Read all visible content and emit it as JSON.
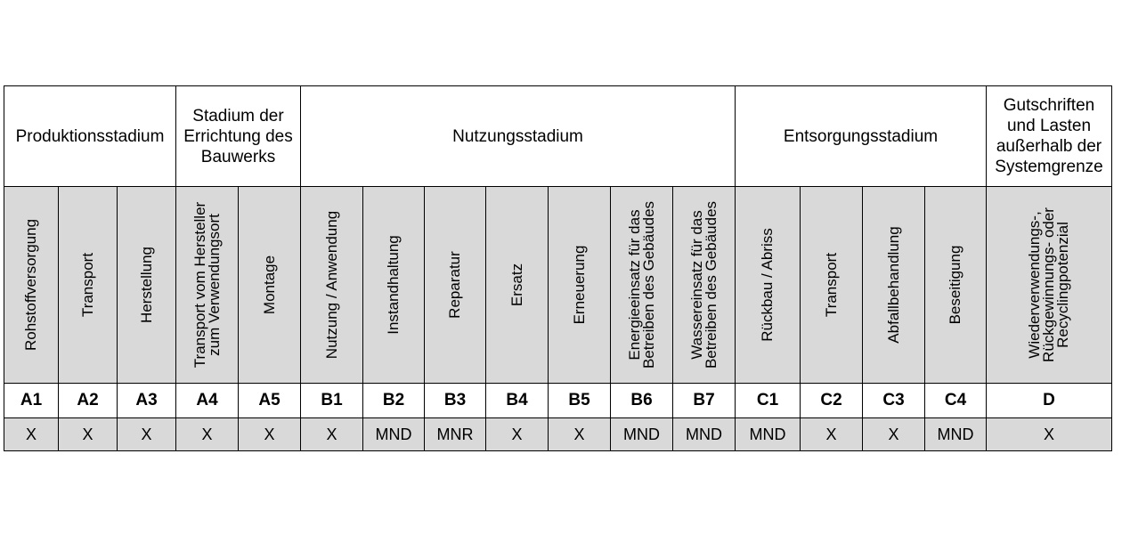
{
  "stages": [
    {
      "label": "Produktionsstadium",
      "span": 3
    },
    {
      "label": "Stadium der Errichtung des Bauwerks",
      "span": 2
    },
    {
      "label": "Nutzungsstadium",
      "span": 7
    },
    {
      "label": "Entsorgungsstadium",
      "span": 4
    },
    {
      "label": "Gutschriften und Lasten außerhalb der Systemgrenze",
      "span": 1
    }
  ],
  "modules": [
    {
      "name": "Rohstoffversorgung",
      "code": "A1",
      "value": "X"
    },
    {
      "name": "Transport",
      "code": "A2",
      "value": "X"
    },
    {
      "name": "Herstellung",
      "code": "A3",
      "value": "X"
    },
    {
      "name": "Transport vom Hersteller zum Verwendungsort",
      "code": "A4",
      "value": "X"
    },
    {
      "name": "Montage",
      "code": "A5",
      "value": "X"
    },
    {
      "name": "Nutzung / Anwendung",
      "code": "B1",
      "value": "X"
    },
    {
      "name": "Instandhaltung",
      "code": "B2",
      "value": "MND"
    },
    {
      "name": "Reparatur",
      "code": "B3",
      "value": "MNR"
    },
    {
      "name": "Ersatz",
      "code": "B4",
      "value": "X"
    },
    {
      "name": "Erneuerung",
      "code": "B5",
      "value": "X"
    },
    {
      "name": "Energieeinsatz für das Betreiben des Gebäudes",
      "code": "B6",
      "value": "MND"
    },
    {
      "name": "Wassereinsatz für das Betreiben des Gebäudes",
      "code": "B7",
      "value": "MND"
    },
    {
      "name": "Rückbau / Abriss",
      "code": "C1",
      "value": "MND"
    },
    {
      "name": "Transport",
      "code": "C2",
      "value": "X"
    },
    {
      "name": "Abfallbehandlung",
      "code": "C3",
      "value": "X"
    },
    {
      "name": "Beseitigung",
      "code": "C4",
      "value": "MND"
    },
    {
      "name": "Wiederverwendungs-, Rückgewinnungs- oder Recyclingpotenzial",
      "code": "D",
      "value": "X"
    }
  ]
}
